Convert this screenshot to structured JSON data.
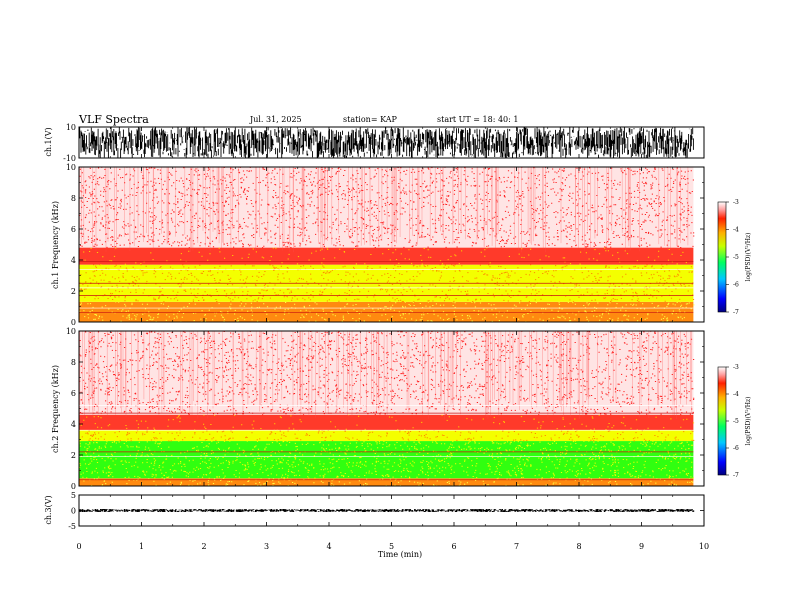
{
  "header": {
    "title": "VLF Spectra",
    "date": "Jul. 31, 2025",
    "station": "station= KAP",
    "start_ut": "start UT =  18: 40: 1"
  },
  "colors": {
    "spec_red": "#ff2020",
    "spec_orange": "#ff9a00",
    "spec_yellow": "#f4ff00",
    "spec_green": "#30ff10"
  },
  "chart_data": [
    {
      "type": "line",
      "id": "ch1_waveform",
      "ylabel": "ch.1(V)",
      "ylim": [
        -10,
        10
      ],
      "yticks": [
        "10",
        "-10"
      ],
      "xlim": [
        0,
        10
      ],
      "description_note": "time series amplitude saturating between -10 and 10 V",
      "series": [
        {
          "name": "ch.1",
          "approx_min": -10,
          "approx_max": 10
        }
      ]
    },
    {
      "type": "heatmap",
      "id": "ch1_spectrogram",
      "ylabel": "ch.1 Frequency (kHz)",
      "ylim": [
        0,
        10
      ],
      "yticks": [
        "0",
        "2",
        "4",
        "6",
        "8",
        "10"
      ],
      "xlim": [
        0,
        10
      ],
      "bands": [
        {
          "f_low": 0.0,
          "f_high": 1.3,
          "level": "orange"
        },
        {
          "f_low": 1.3,
          "f_high": 3.7,
          "level": "yellow"
        },
        {
          "f_low": 3.7,
          "f_high": 4.8,
          "level": "red-dense"
        },
        {
          "f_low": 4.8,
          "f_high": 10.0,
          "level": "red-sparse"
        }
      ],
      "colorbar": {
        "label": "log(PSD)(V²/Hz)",
        "ticks": [
          "-3",
          "-4",
          "-5",
          "-6",
          "-7"
        ],
        "range": [
          -7,
          -3
        ]
      }
    },
    {
      "type": "heatmap",
      "id": "ch2_spectrogram",
      "ylabel": "ch.2 Frequency (kHz)",
      "ylim": [
        0,
        10
      ],
      "yticks": [
        "0",
        "2",
        "4",
        "6",
        "8",
        "10"
      ],
      "xlim": [
        0,
        10
      ],
      "bands": [
        {
          "f_low": 0.0,
          "f_high": 0.5,
          "level": "orange"
        },
        {
          "f_low": 0.5,
          "f_high": 2.9,
          "level": "green"
        },
        {
          "f_low": 2.9,
          "f_high": 3.6,
          "level": "yellow"
        },
        {
          "f_low": 3.6,
          "f_high": 4.6,
          "level": "red-dense"
        },
        {
          "f_low": 4.6,
          "f_high": 10.0,
          "level": "red-sparse"
        }
      ],
      "colorbar": {
        "label": "log(PSD)(V²/Hz)",
        "ticks": [
          "-3",
          "-4",
          "-5",
          "-6",
          "-7"
        ],
        "range": [
          -7,
          -3
        ]
      }
    },
    {
      "type": "line",
      "id": "ch3_waveform",
      "ylabel": "ch.3(V)",
      "ylim": [
        -5,
        5
      ],
      "yticks": [
        "5",
        "0",
        "-5"
      ],
      "xlim": [
        0,
        10
      ],
      "series": [
        {
          "name": "ch.3",
          "approx_min": -0.5,
          "approx_max": 0.5
        }
      ]
    }
  ],
  "xaxis": {
    "label": "Time (min)",
    "ticks": [
      "0",
      "1",
      "2",
      "3",
      "4",
      "5",
      "6",
      "7",
      "8",
      "9",
      "10"
    ],
    "range": [
      0,
      10
    ],
    "data_end": 9.83
  }
}
